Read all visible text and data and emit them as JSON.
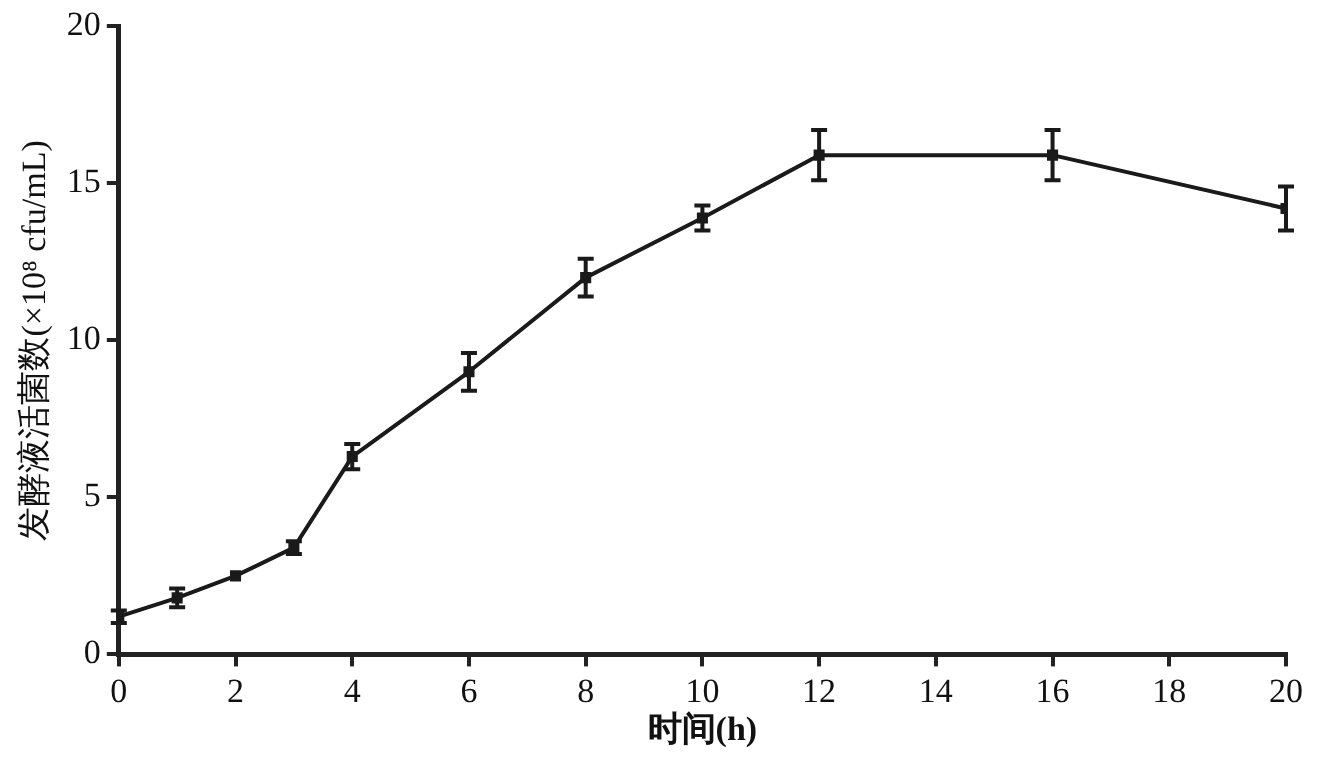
{
  "chart_data": {
    "type": "line",
    "xlabel": "时间(h)",
    "ylabel": "发酵液活菌数(×10⁸ cfu/mL)",
    "x": [
      0,
      1,
      2,
      3,
      4,
      6,
      8,
      10,
      12,
      16,
      20
    ],
    "series": [
      {
        "color": "#1a1a1a",
        "values": [
          1.2,
          1.8,
          2.5,
          3.4,
          6.3,
          9.0,
          12.0,
          13.9,
          15.9,
          15.9,
          14.2
        ],
        "errors": [
          0.2,
          0.3,
          null,
          0.2,
          0.4,
          0.6,
          0.6,
          0.4,
          0.8,
          0.8,
          0.7
        ]
      }
    ],
    "xlim": [
      0,
      20
    ],
    "xticks": [
      0,
      2,
      4,
      6,
      8,
      10,
      12,
      14,
      16,
      18,
      20
    ],
    "ylim": [
      0,
      20
    ],
    "yticks": [
      0,
      5,
      10,
      15,
      20
    ],
    "grid": false,
    "legend": false,
    "marker": "square",
    "line_style": "solid"
  }
}
